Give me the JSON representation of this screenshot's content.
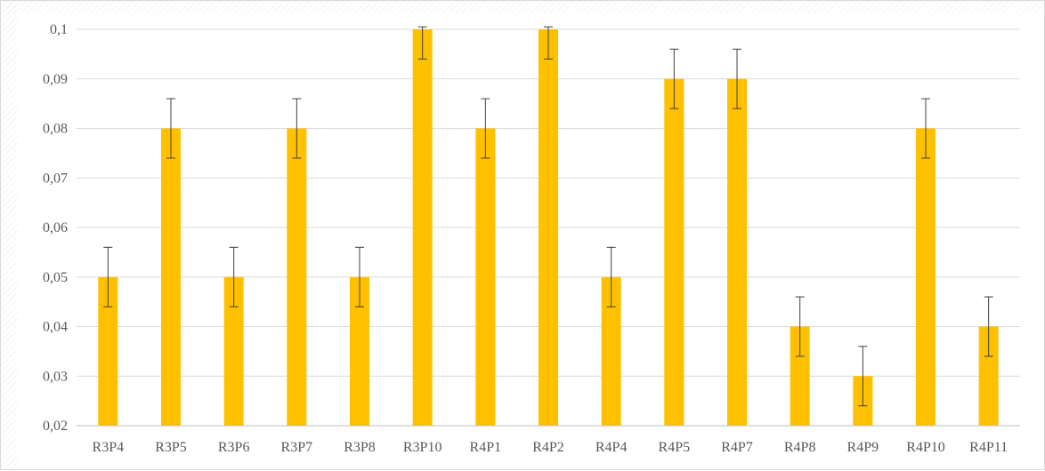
{
  "chart_data": {
    "type": "bar",
    "title": "",
    "xlabel": "",
    "ylabel": "",
    "categories": [
      "R3P4",
      "R3P5",
      "R3P6",
      "R3P7",
      "R3P8",
      "R3P10",
      "R4P1",
      "R4P2",
      "R4P4",
      "R4P5",
      "R4P7",
      "R4P8",
      "R4P9",
      "R4P10",
      "R4P11"
    ],
    "values": [
      0.05,
      0.08,
      0.05,
      0.08,
      0.05,
      0.1,
      0.08,
      0.1,
      0.05,
      0.09,
      0.09,
      0.04,
      0.03,
      0.08,
      0.04
    ],
    "error": 0.006,
    "ylim": [
      0.02,
      0.1
    ],
    "yticks": [
      0.02,
      0.03,
      0.04,
      0.05,
      0.06,
      0.07,
      0.08,
      0.09,
      0.1
    ],
    "ytick_labels": [
      "0,02",
      "0,03",
      "0,04",
      "0,05",
      "0,06",
      "0,07",
      "0,08",
      "0,09",
      "0,1"
    ],
    "grid": true,
    "legend": "none",
    "bar_color": "#FFC000",
    "gridline_color": "#D9D9D9",
    "errorbar_color": "#404040"
  }
}
